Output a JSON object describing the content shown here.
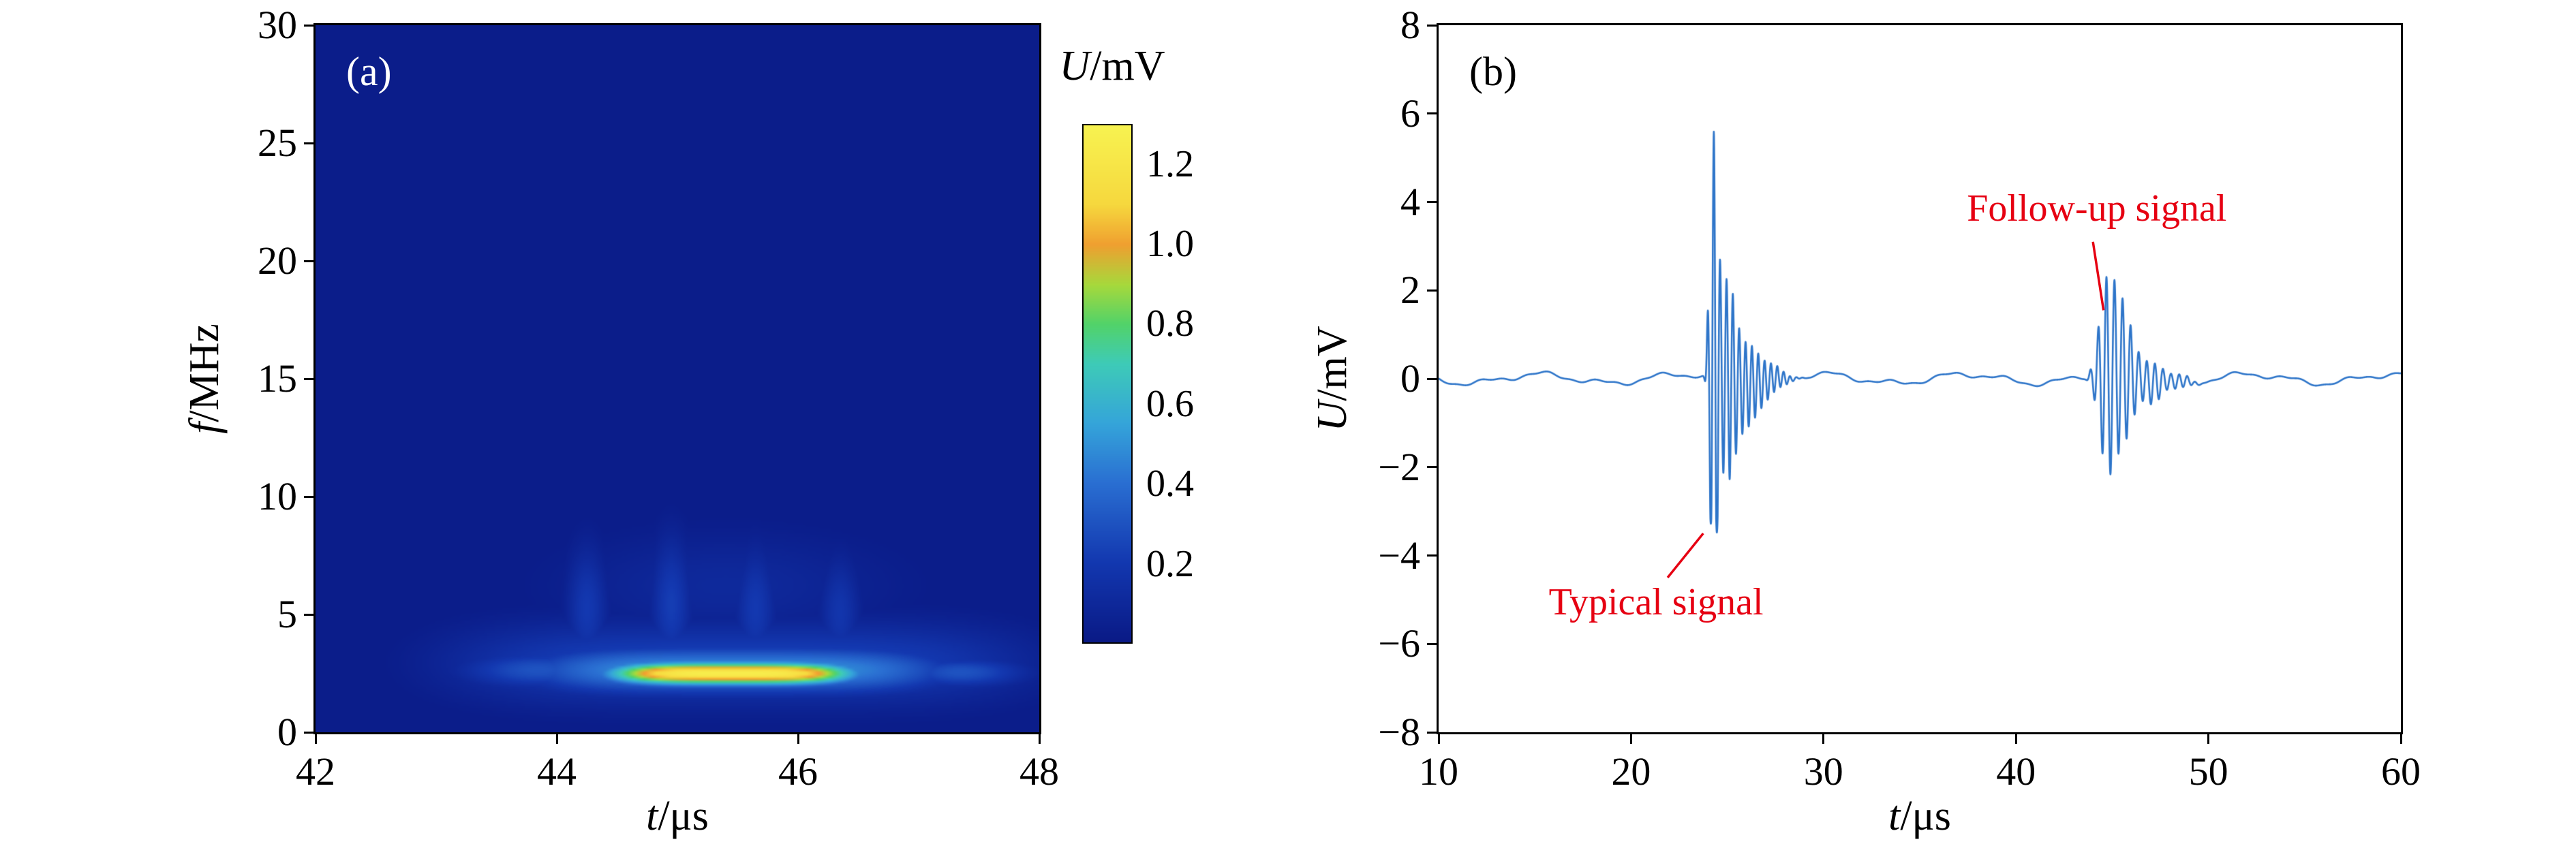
{
  "figure": {
    "background": "#ffffff",
    "frame_color": "#000000"
  },
  "chart_data": [
    {
      "panel": "a",
      "type": "heatmap",
      "tag": "(a)",
      "xlabel": {
        "var": "t",
        "rest": "/μs"
      },
      "ylabel": {
        "var": "f",
        "rest": "/MHz"
      },
      "xlim": [
        42,
        48
      ],
      "ylim": [
        0,
        30
      ],
      "xtick_values": [
        42,
        44,
        46,
        48
      ],
      "xtick_labels": [
        "42",
        "44",
        "46",
        "48"
      ],
      "ytick_values": [
        0,
        5,
        10,
        15,
        20,
        25,
        30
      ],
      "ytick_labels": [
        "0",
        "5",
        "10",
        "15",
        "20",
        "25",
        "30"
      ],
      "colorbar": {
        "title": {
          "var": "U",
          "rest": "/mV"
        },
        "range": [
          0,
          1.3
        ],
        "tick_values": [
          1.2,
          1.0,
          0.8,
          0.6,
          0.4,
          0.2
        ],
        "tick_labels": [
          "1.2",
          "1.0",
          "0.8",
          "0.6",
          "0.4",
          "0.2"
        ],
        "stops": [
          [
            0.0,
            "#0a1a86"
          ],
          [
            0.2,
            "#1338b0"
          ],
          [
            0.4,
            "#2a6fd2"
          ],
          [
            0.55,
            "#35a5da"
          ],
          [
            0.7,
            "#3ecbb8"
          ],
          [
            0.8,
            "#52d36a"
          ],
          [
            0.9,
            "#a8d93c"
          ],
          [
            1.0,
            "#f0a030"
          ],
          [
            1.1,
            "#f6d83e"
          ],
          [
            1.3,
            "#f8f351"
          ]
        ]
      },
      "base_value": 0.02,
      "peak": {
        "t": 45.5,
        "f": 2.5,
        "value_mV": 1.2
      },
      "blobs": [
        {
          "t": 45.45,
          "f": 2.45,
          "st": 1.05,
          "sf": 0.5,
          "amp": 1.26,
          "pt": 4,
          "pf": 2
        },
        {
          "t": 45.5,
          "f": 2.6,
          "st": 1.75,
          "sf": 1.0,
          "amp": 0.5,
          "pt": 4,
          "pf": 2
        },
        {
          "t": 45.5,
          "f": 2.9,
          "st": 2.35,
          "sf": 1.7,
          "amp": 0.24,
          "pt": 4,
          "pf": 2
        },
        {
          "t": 43.85,
          "f": 2.6,
          "st": 0.65,
          "sf": 0.8,
          "amp": 0.3,
          "pt": 2,
          "pf": 2
        },
        {
          "t": 47.35,
          "f": 2.5,
          "st": 0.55,
          "sf": 0.65,
          "amp": 0.3,
          "pt": 2,
          "pf": 2
        },
        {
          "t": 44.25,
          "f": 5.2,
          "st": 0.17,
          "sf": 2.6,
          "amp": 0.2,
          "pt": 2,
          "pf": 2
        },
        {
          "t": 44.95,
          "f": 5.4,
          "st": 0.17,
          "sf": 2.8,
          "amp": 0.22,
          "pt": 2,
          "pf": 2
        },
        {
          "t": 45.65,
          "f": 5.2,
          "st": 0.17,
          "sf": 2.6,
          "amp": 0.2,
          "pt": 2,
          "pf": 2
        },
        {
          "t": 46.35,
          "f": 5.0,
          "st": 0.17,
          "sf": 2.4,
          "amp": 0.18,
          "pt": 2,
          "pf": 2
        },
        {
          "t": 45.4,
          "f": 6.2,
          "st": 1.35,
          "sf": 2.3,
          "amp": 0.1,
          "pt": 2,
          "pf": 2
        }
      ]
    },
    {
      "panel": "b",
      "type": "line",
      "tag": "(b)",
      "xlabel": {
        "var": "t",
        "rest": "/μs"
      },
      "ylabel": {
        "var": "U",
        "rest": "/mV"
      },
      "xlim": [
        10,
        60
      ],
      "ylim": [
        -8,
        8
      ],
      "xtick_values": [
        10,
        20,
        30,
        40,
        50,
        60
      ],
      "xtick_labels": [
        "10",
        "20",
        "30",
        "40",
        "50",
        "60"
      ],
      "ytick_values": [
        -8,
        -6,
        -4,
        -2,
        0,
        2,
        4,
        6,
        8
      ],
      "ytick_labels": [
        "−8",
        "−6",
        "−4",
        "−2",
        "0",
        "2",
        "4",
        "6",
        "8"
      ],
      "line_color": "#2e75c9",
      "baseline_mV": 0,
      "bursts": [
        {
          "name": "Typical signal",
          "t_start": 23.9,
          "t_end": 27.5,
          "peak_mV": 5.1,
          "trough_mV": -3.6,
          "carrier_period_us": 0.33
        },
        {
          "name": "Follow-up signal",
          "t_start": 43.4,
          "t_end": 47.8,
          "peak_mV": 2.0,
          "trough_mV": -1.9,
          "carrier_period_us": 0.42
        }
      ],
      "annotations": [
        {
          "label": "Typical signal",
          "color": "#e60012",
          "text_at": {
            "t": 21.3,
            "mV": -5.05
          },
          "leader": {
            "from": {
              "t": 21.9,
              "mV": -4.5
            },
            "to": {
              "t": 23.75,
              "mV": -3.5
            }
          }
        },
        {
          "label": "Follow-up signal",
          "color": "#e60012",
          "text_at": {
            "t": 44.2,
            "mV": 3.85
          },
          "leader": {
            "from": {
              "t": 44.0,
              "mV": 3.1
            },
            "to": {
              "t": 44.55,
              "mV": 1.55
            }
          }
        }
      ]
    }
  ]
}
